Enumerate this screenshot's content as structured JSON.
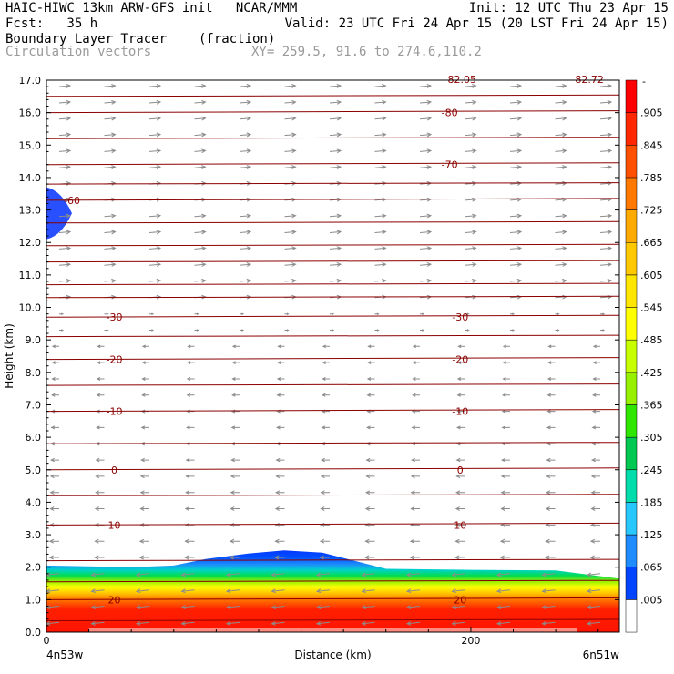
{
  "header": {
    "line1_left": "HAIC-HIWC 13km ARW-GFS init   NCAR/MMM",
    "line1_right": "Init: 12 UTC Thu 23 Apr 15",
    "line2_left": "Fcst:   35 h",
    "line2_right": "Valid: 23 UTC Fri 24 Apr 15 (20 LST Fri 24 Apr 15)",
    "line3_left": "Boundary Layer Tracer",
    "line3_unit": "(fraction)",
    "line4_left": "Circulation vectors",
    "line4_right": "XY= 259.5, 91.6 to 274.6,110.2"
  },
  "chart_data": {
    "type": "heatmap",
    "title": "Boundary Layer Tracer",
    "unit": "(fraction)",
    "xlabel": "Distance (km)",
    "ylabel": "Height (km)",
    "xlim": [
      0,
      270
    ],
    "ylim": [
      0,
      17
    ],
    "x_ticks": [
      "0",
      "200"
    ],
    "y_ticks": [
      "0.0",
      "1.0",
      "2.0",
      "3.0",
      "4.0",
      "5.0",
      "6.0",
      "7.0",
      "8.0",
      "9.0",
      "10.0",
      "11.0",
      "12.0",
      "13.0",
      "14.0",
      "15.0",
      "16.0",
      "17.0"
    ],
    "x_endpoint_labels": {
      "left": "4n53w",
      "right": "6n51w"
    },
    "colorbar": {
      "labels": [
        ".005",
        ".065",
        ".125",
        ".185",
        ".245",
        ".305",
        ".365",
        ".425",
        ".485",
        ".545",
        ".605",
        ".665",
        ".725",
        ".785",
        ".845",
        ".905"
      ],
      "top_label": "-",
      "colors": [
        "#ffffff",
        "#0044ff",
        "#1e8cff",
        "#28c8ff",
        "#00dcaa",
        "#00c850",
        "#2ee600",
        "#96f000",
        "#c8ff00",
        "#ffff00",
        "#ffe600",
        "#ffc800",
        "#ffaa00",
        "#ff7800",
        "#ff5000",
        "#ff2800",
        "#ff0000"
      ]
    },
    "temperature_contours": [
      {
        "label": "20",
        "height_km": 1.0
      },
      {
        "label": "10",
        "height_km": 3.3
      },
      {
        "label": "0",
        "height_km": 5.0
      },
      {
        "label": "-10",
        "height_km": 6.8
      },
      {
        "label": "-20",
        "height_km": 8.4
      },
      {
        "label": "-30",
        "height_km": 9.7
      },
      {
        "label": "-60",
        "height_km": 13.3
      },
      {
        "label": "-70",
        "height_km": 14.4
      },
      {
        "label": "-80",
        "height_km": 16.0
      }
    ],
    "top_edge_labels": [
      "-82.05",
      "-82.72"
    ],
    "boundary_layer_top_km": [
      [
        0,
        2.05
      ],
      [
        40,
        2.0
      ],
      [
        60,
        2.05
      ],
      [
        75,
        2.25
      ],
      [
        95,
        2.42
      ],
      [
        112,
        2.52
      ],
      [
        130,
        2.45
      ],
      [
        148,
        2.15
      ],
      [
        160,
        1.95
      ],
      [
        200,
        1.92
      ],
      [
        240,
        1.9
      ],
      [
        270,
        1.65
      ]
    ],
    "cirrus_patch": {
      "x_km": [
        0,
        12
      ],
      "height_km": [
        12.1,
        13.7
      ]
    },
    "vectors": {
      "upper": "eastward, above 10 km",
      "lower": "westward, below 9 km"
    }
  }
}
